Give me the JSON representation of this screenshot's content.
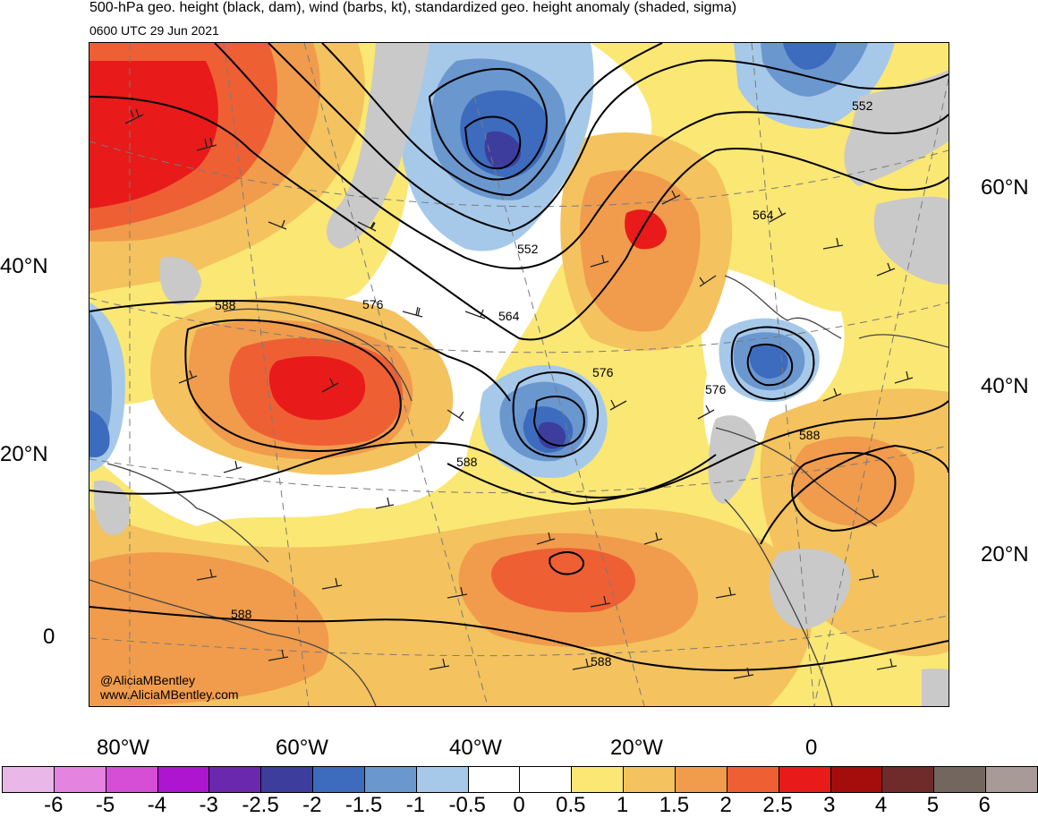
{
  "header": {
    "title": "500-hPa geo. height (black, dam), wind (barbs, kt), standardized geo. height anomaly (shaded, sigma)",
    "valid_time": "0600 UTC 29 Jun 2021"
  },
  "map": {
    "left_lat_labels": [
      "40°N",
      "20°N",
      "0"
    ],
    "right_lat_labels": [
      "60°N",
      "40°N",
      "20°N"
    ],
    "lon_labels": [
      "80°W",
      "60°W",
      "40°W",
      "20°W",
      "0"
    ],
    "contour_labels": [
      "588",
      "576",
      "564",
      "552",
      "588",
      "576",
      "588",
      "588",
      "576",
      "564",
      "552",
      "588"
    ],
    "credits": [
      "@AliciaMBentley",
      "www.AliciaMBentley.com"
    ],
    "features": [
      "coastlines",
      "country borders",
      "state borders",
      "lat-lon grid (dashed)",
      "wind barbs"
    ]
  },
  "colorbar": {
    "tick_labels": [
      "-6",
      "-5",
      "-4",
      "-3",
      "-2.5",
      "-2",
      "-1.5",
      "-1",
      "-0.5",
      "0",
      "0.5",
      "1",
      "1.5",
      "2",
      "2.5",
      "3",
      "4",
      "5",
      "6"
    ],
    "colors": [
      "#eab8e8",
      "#e483e0",
      "#d64ed6",
      "#ae15d0",
      "#6a28ae",
      "#3d3d9e",
      "#3d6cbe",
      "#6b97cf",
      "#a6c9ea",
      "#ffffff",
      "#ffffff",
      "#fbe773",
      "#f4c25e",
      "#f09c4c",
      "#ef5f34",
      "#e81a1a",
      "#a50c0c",
      "#6f2a2a",
      "#72665f",
      "#a89a96"
    ]
  }
}
